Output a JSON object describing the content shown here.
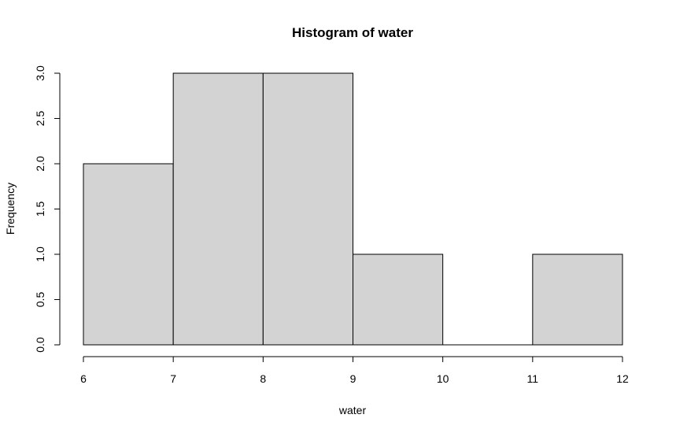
{
  "chart_data": {
    "type": "bar",
    "title": "Histogram of water",
    "xlabel": "water",
    "ylabel": "Frequency",
    "bins": [
      {
        "start": 6,
        "end": 7,
        "count": 2
      },
      {
        "start": 7,
        "end": 8,
        "count": 3
      },
      {
        "start": 8,
        "end": 9,
        "count": 3
      },
      {
        "start": 9,
        "end": 10,
        "count": 1
      },
      {
        "start": 10,
        "end": 11,
        "count": 0
      },
      {
        "start": 11,
        "end": 12,
        "count": 1
      }
    ],
    "xlim": [
      6,
      12
    ],
    "ylim": [
      0,
      3
    ],
    "x_ticks": [
      6,
      7,
      8,
      9,
      10,
      11,
      12
    ],
    "y_ticks": [
      "0.0",
      "0.5",
      "1.0",
      "1.5",
      "2.0",
      "2.5",
      "3.0"
    ],
    "bar_color": "#d3d3d3",
    "grid": false,
    "legend": "none"
  }
}
